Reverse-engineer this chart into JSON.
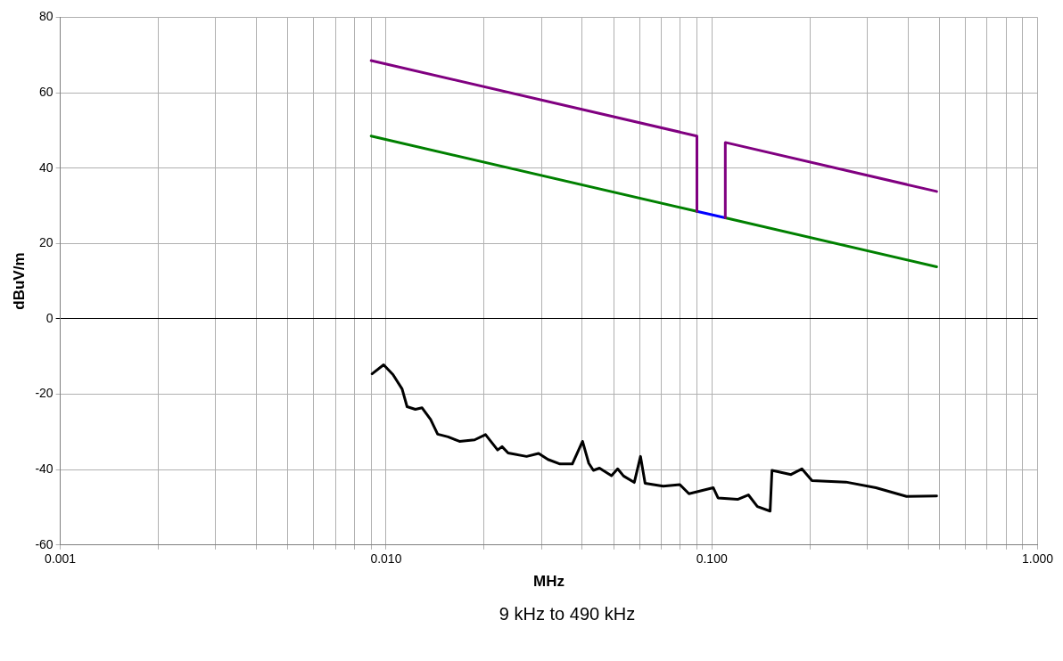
{
  "chart_data": {
    "type": "line",
    "xlabel": "MHz",
    "ylabel": "dBuV/m",
    "log": "x",
    "grid": true,
    "marker": "none",
    "line_style": "solid",
    "xlim": [
      0.001,
      1
    ],
    "ylim": [
      -60,
      80
    ],
    "xticks": [
      {
        "value": 0.001,
        "label": "0.001"
      },
      {
        "value": 0.002,
        "label": null
      },
      {
        "value": 0.003,
        "label": null
      },
      {
        "value": 0.004,
        "label": null
      },
      {
        "value": 0.005,
        "label": null
      },
      {
        "value": 0.006,
        "label": null
      },
      {
        "value": 0.007,
        "label": null
      },
      {
        "value": 0.008,
        "label": null
      },
      {
        "value": 0.009,
        "label": null
      },
      {
        "value": 0.01,
        "label": "0.010"
      },
      {
        "value": 0.02,
        "label": null
      },
      {
        "value": 0.03,
        "label": null
      },
      {
        "value": 0.04,
        "label": null
      },
      {
        "value": 0.05,
        "label": null
      },
      {
        "value": 0.06,
        "label": null
      },
      {
        "value": 0.07,
        "label": null
      },
      {
        "value": 0.08,
        "label": null
      },
      {
        "value": 0.09,
        "label": null
      },
      {
        "value": 0.1,
        "label": "0.100"
      },
      {
        "value": 0.2,
        "label": null
      },
      {
        "value": 0.3,
        "label": null
      },
      {
        "value": 0.4,
        "label": null
      },
      {
        "value": 0.5,
        "label": null
      },
      {
        "value": 0.6,
        "label": null
      },
      {
        "value": 0.7,
        "label": null
      },
      {
        "value": 0.8,
        "label": null
      },
      {
        "value": 0.9,
        "label": null
      },
      {
        "value": 1,
        "label": "1.000"
      }
    ],
    "yticks": [
      -60,
      -40,
      -20,
      0,
      20,
      40,
      60,
      80
    ],
    "annotations": [
      "9 kHz to 490 kHz"
    ],
    "series": [
      {
        "color": "#800080",
        "x": [
          0.009,
          0.09,
          0.09,
          0.1,
          0.11,
          0.11,
          0.49
        ],
        "values": [
          68.5,
          48.5,
          28.5,
          null,
          26.8,
          46.8,
          33.8
        ]
      },
      {
        "color": "#008000",
        "x": [
          0.009,
          0.09,
          0.1,
          0.11,
          0.49
        ],
        "values": [
          48.5,
          28.5,
          null,
          26.8,
          13.8
        ]
      },
      {
        "color": "#0000ff",
        "x": [
          0.09,
          0.11
        ],
        "values": [
          28.5,
          26.8
        ]
      },
      {
        "color": "#000000",
        "x": [
          0.00906,
          0.00983,
          0.0105,
          0.0112,
          0.0116,
          0.0123,
          0.0129,
          0.0137,
          0.0144,
          0.0155,
          0.0168,
          0.0187,
          0.0202,
          0.022,
          0.0227,
          0.0237,
          0.027,
          0.0294,
          0.0314,
          0.0342,
          0.0373,
          0.0401,
          0.0419,
          0.0433,
          0.0452,
          0.0492,
          0.0514,
          0.0536,
          0.0578,
          0.0604,
          0.0624,
          0.0709,
          0.0798,
          0.0851,
          0.101,
          0.1045,
          0.12,
          0.1295,
          0.138,
          0.151,
          0.153,
          0.175,
          0.189,
          0.203,
          0.258,
          0.319,
          0.396,
          0.49
        ],
        "values": [
          -14.6,
          -12.2,
          -14.8,
          -18.6,
          -23.3,
          -24,
          -23.6,
          -26.7,
          -30.6,
          -31.3,
          -32.5,
          -32.1,
          -30.7,
          -34.8,
          -33.9,
          -35.6,
          -36.5,
          -35.7,
          -37.3,
          -38.5,
          -38.5,
          -32.5,
          -38.3,
          -40.2,
          -39.6,
          -41.6,
          -39.8,
          -41.7,
          -43.4,
          -36.5,
          -43.6,
          -44.4,
          -44,
          -46.4,
          -44.8,
          -47.5,
          -47.9,
          -46.7,
          -49.8,
          -51,
          -40.2,
          -41.3,
          -39.8,
          -42.9,
          -43.3,
          -44.8,
          -47.1,
          -47
        ]
      }
    ]
  }
}
